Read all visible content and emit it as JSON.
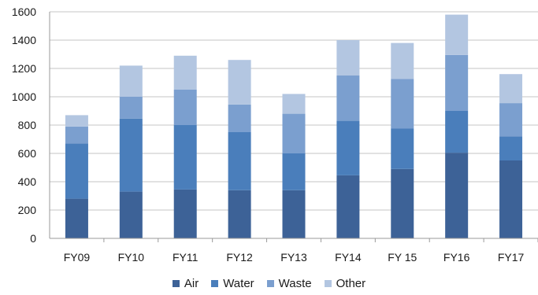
{
  "chart_data": {
    "type": "bar",
    "stacked": true,
    "title": "",
    "xlabel": "",
    "ylabel": "",
    "categories": [
      "FY09",
      "FY10",
      "FY11",
      "FY12",
      "FY13",
      "FY14",
      "FY 15",
      "FY16",
      "FY17"
    ],
    "ylim": [
      0,
      1600
    ],
    "yticks": [
      0,
      200,
      400,
      600,
      800,
      1000,
      1200,
      1400,
      1600
    ],
    "grid": true,
    "legend_position": "bottom",
    "series": [
      {
        "name": "Air",
        "color": "#3d6297",
        "values": [
          280,
          330,
          345,
          340,
          340,
          445,
          490,
          605,
          550
        ]
      },
      {
        "name": "Water",
        "color": "#4a7ebb",
        "values": [
          390,
          515,
          455,
          410,
          260,
          385,
          285,
          295,
          170
        ]
      },
      {
        "name": "Waste",
        "color": "#7b9fcf",
        "values": [
          120,
          155,
          250,
          195,
          280,
          320,
          350,
          395,
          235
        ]
      },
      {
        "name": "Other",
        "color": "#b3c6e1",
        "values": [
          80,
          220,
          240,
          315,
          140,
          250,
          255,
          285,
          205
        ]
      }
    ]
  }
}
